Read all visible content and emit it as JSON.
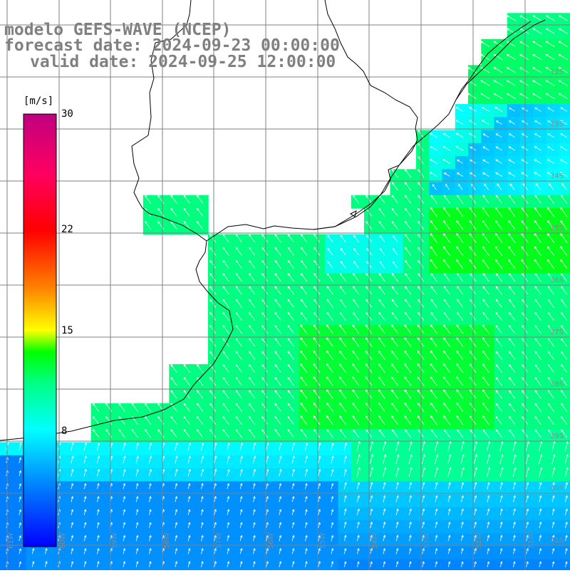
{
  "header": {
    "model": "modelo GEFS-WAVE (NCEP)",
    "forecast": "forecast date: 2024-09-23 00:00:00",
    "valid": "valid date: 2024-09-25 12:00:00"
  },
  "colorbar": {
    "units": "[m/s]",
    "ticks": [
      {
        "label": "30",
        "value": 30
      },
      {
        "label": "22",
        "value": 22
      },
      {
        "label": "15",
        "value": 15
      },
      {
        "label": "8",
        "value": 8
      }
    ],
    "min": 0,
    "max": 30
  },
  "lat_labels": [
    "32S",
    "33S",
    "34S",
    "35S",
    "36S",
    "37S",
    "38S",
    "39S",
    "40S",
    "41S"
  ],
  "lon_labels": [
    "61W",
    "60W",
    "59W",
    "58W",
    "57W",
    "56W",
    "55W",
    "54W",
    "53W",
    "52W",
    "51W"
  ],
  "colors": {
    "land": "#ffffff",
    "coast": "#000000",
    "grid": "#808080",
    "arrow": "#ffffff",
    "title": "#808080"
  }
}
